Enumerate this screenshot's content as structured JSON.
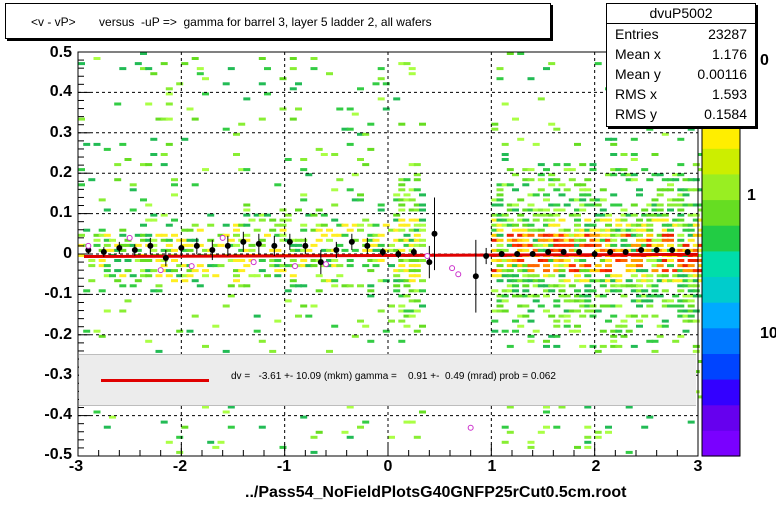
{
  "title": "<v - vP>       versus  -uP =>  gamma for barrel 3, layer 5 ladder 2, all wafers",
  "stats": {
    "name": "dvuP5002",
    "rows": [
      {
        "label": "Entries",
        "value": "23287"
      },
      {
        "label": "Mean x",
        "value": "1.176"
      },
      {
        "label": "Mean y",
        "value": "0.00116"
      },
      {
        "label": "RMS x",
        "value": "1.593"
      },
      {
        "label": "RMS y",
        "value": "0.1584"
      }
    ]
  },
  "fit_text": "dv =   -3.61 +- 10.09 (mkm) gamma =    0.91 +-  0.49 (mrad) prob = 0.062",
  "footer": "../Pass54_NoFieldPlotsG40GNFP25rCut0.5cm.root",
  "colors": {
    "fit_line": "#e00000",
    "heat_low": "#7a00ff",
    "heat_mid": "#22cc44",
    "heat_high": "#ff2200",
    "points": "#000000",
    "open_points": "#cc33cc"
  },
  "chart_data": {
    "type": "heatmap",
    "xlim": [
      -3,
      3
    ],
    "ylim": [
      -0.5,
      0.5
    ],
    "x_ticks": [
      "-3",
      "-2",
      "-1",
      "0",
      "1",
      "2",
      "3"
    ],
    "y_ticks": [
      "0.5",
      "0.4",
      "0.3",
      "0.2",
      "0.1",
      "0",
      "-0.1",
      "-0.2",
      "-0.3",
      "-0.4",
      "-0.5"
    ],
    "z_ticks": [
      "1",
      "10"
    ],
    "z_partial_label": "0",
    "grid": true,
    "fit_line": {
      "slope": 0.00091,
      "intercept": -0.00361
    },
    "profile_points": [
      {
        "x": -2.9,
        "y": 0.01,
        "err": 0.01
      },
      {
        "x": -2.75,
        "y": 0.005,
        "err": 0.012
      },
      {
        "x": -2.6,
        "y": 0.015,
        "err": 0.015
      },
      {
        "x": -2.45,
        "y": 0.01,
        "err": 0.014
      },
      {
        "x": -2.3,
        "y": 0.02,
        "err": 0.02
      },
      {
        "x": -2.15,
        "y": -0.01,
        "err": 0.02
      },
      {
        "x": -2.0,
        "y": 0.015,
        "err": 0.02
      },
      {
        "x": -1.85,
        "y": 0.02,
        "err": 0.02
      },
      {
        "x": -1.7,
        "y": 0.01,
        "err": 0.025
      },
      {
        "x": -1.55,
        "y": 0.02,
        "err": 0.025
      },
      {
        "x": -1.4,
        "y": 0.03,
        "err": 0.025
      },
      {
        "x": -1.25,
        "y": 0.025,
        "err": 0.025
      },
      {
        "x": -1.1,
        "y": 0.02,
        "err": 0.025
      },
      {
        "x": -0.95,
        "y": 0.03,
        "err": 0.02
      },
      {
        "x": -0.8,
        "y": 0.02,
        "err": 0.02
      },
      {
        "x": -0.65,
        "y": -0.02,
        "err": 0.03
      },
      {
        "x": -0.5,
        "y": 0.01,
        "err": 0.02
      },
      {
        "x": -0.35,
        "y": 0.03,
        "err": 0.02
      },
      {
        "x": -0.2,
        "y": 0.02,
        "err": 0.02
      },
      {
        "x": -0.05,
        "y": 0.005,
        "err": 0.01
      },
      {
        "x": 0.1,
        "y": 0.0,
        "err": 0.01
      },
      {
        "x": 0.25,
        "y": 0.005,
        "err": 0.01
      },
      {
        "x": 0.4,
        "y": -0.02,
        "err": 0.04
      },
      {
        "x": 0.45,
        "y": 0.05,
        "err": 0.09
      },
      {
        "x": 0.85,
        "y": -0.055,
        "err": 0.09
      },
      {
        "x": 0.95,
        "y": -0.005,
        "err": 0.02
      },
      {
        "x": 1.1,
        "y": 0.0,
        "err": 0.005
      },
      {
        "x": 1.25,
        "y": 0.0,
        "err": 0.005
      },
      {
        "x": 1.4,
        "y": 0.0,
        "err": 0.005
      },
      {
        "x": 1.55,
        "y": 0.005,
        "err": 0.005
      },
      {
        "x": 1.7,
        "y": 0.005,
        "err": 0.005
      },
      {
        "x": 1.85,
        "y": 0.005,
        "err": 0.005
      },
      {
        "x": 2.0,
        "y": 0.0,
        "err": 0.005
      },
      {
        "x": 2.15,
        "y": 0.005,
        "err": 0.005
      },
      {
        "x": 2.3,
        "y": 0.005,
        "err": 0.005
      },
      {
        "x": 2.45,
        "y": 0.01,
        "err": 0.005
      },
      {
        "x": 2.6,
        "y": 0.01,
        "err": 0.005
      },
      {
        "x": 2.75,
        "y": 0.01,
        "err": 0.005
      },
      {
        "x": 2.9,
        "y": 0.005,
        "err": 0.005
      }
    ],
    "open_points": [
      {
        "x": -2.9,
        "y": 0.02
      },
      {
        "x": -2.5,
        "y": 0.04
      },
      {
        "x": -2.2,
        "y": -0.04
      },
      {
        "x": -1.9,
        "y": -0.03
      },
      {
        "x": -1.6,
        "y": 0.04
      },
      {
        "x": -1.3,
        "y": -0.02
      },
      {
        "x": -0.9,
        "y": -0.03
      },
      {
        "x": -0.6,
        "y": -0.025
      },
      {
        "x": 0.38,
        "y": -0.005
      },
      {
        "x": 0.62,
        "y": -0.035
      },
      {
        "x": 0.68,
        "y": -0.05
      },
      {
        "x": 0.8,
        "y": -0.43
      }
    ]
  }
}
